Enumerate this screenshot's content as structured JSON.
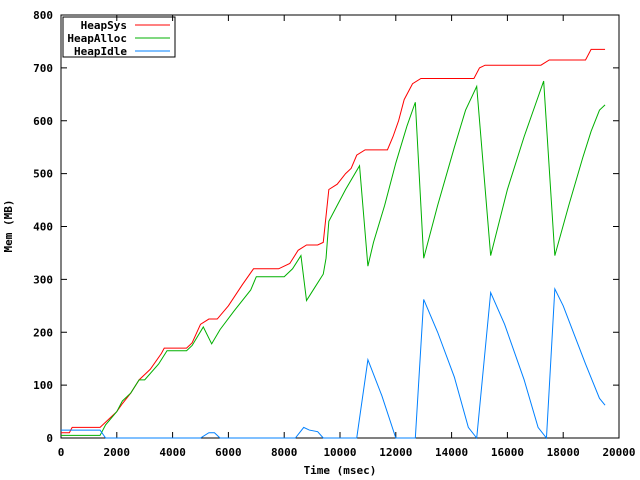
{
  "chart_data": {
    "type": "line",
    "xlabel": "Time (msec)",
    "ylabel": "Mem (MB)",
    "xlim": [
      0,
      20000
    ],
    "ylim": [
      0,
      800
    ],
    "xticks": [
      0,
      2000,
      4000,
      6000,
      8000,
      10000,
      12000,
      14000,
      16000,
      18000,
      20000
    ],
    "yticks": [
      0,
      100,
      200,
      300,
      400,
      500,
      600,
      700,
      800
    ],
    "legend": "top-left",
    "series": [
      {
        "name": "HeapSys",
        "color": "#ff0000",
        "x": [
          0,
          300,
          400,
          1400,
          1600,
          2000,
          2200,
          2500,
          2800,
          3200,
          3600,
          3700,
          4500,
          4700,
          5000,
          5300,
          5600,
          6000,
          6500,
          6900,
          7200,
          7800,
          8200,
          8500,
          8800,
          9200,
          9400,
          9600,
          9900,
          10200,
          10400,
          10600,
          10900,
          11700,
          11900,
          12100,
          12300,
          12600,
          12900,
          14800,
          15000,
          15200,
          17200,
          17500,
          18800,
          19000,
          19500
        ],
        "values": [
          10,
          10,
          20,
          20,
          30,
          50,
          65,
          85,
          110,
          130,
          160,
          170,
          170,
          180,
          215,
          225,
          225,
          250,
          290,
          320,
          320,
          320,
          330,
          355,
          365,
          365,
          370,
          470,
          480,
          500,
          510,
          535,
          545,
          545,
          570,
          600,
          640,
          670,
          680,
          680,
          700,
          705,
          705,
          715,
          715,
          735,
          735
        ]
      },
      {
        "name": "HeapAlloc",
        "color": "#00b000",
        "x": [
          0,
          1400,
          1600,
          2000,
          2200,
          2500,
          2800,
          3000,
          3500,
          3800,
          4500,
          4700,
          5100,
          5400,
          5700,
          6200,
          6800,
          7000,
          8000,
          8300,
          8600,
          8800,
          9100,
          9400,
          9500,
          9600,
          9900,
          10200,
          10700,
          11000,
          11200,
          11600,
          12000,
          12400,
          12700,
          13000,
          13500,
          14100,
          14500,
          14900,
          15400,
          16000,
          16600,
          17000,
          17300,
          17700,
          18200,
          18700,
          19000,
          19300,
          19500
        ],
        "values": [
          5,
          5,
          25,
          50,
          70,
          85,
          110,
          110,
          140,
          165,
          165,
          175,
          210,
          178,
          205,
          240,
          280,
          305,
          305,
          320,
          345,
          260,
          285,
          310,
          340,
          410,
          440,
          470,
          515,
          325,
          370,
          440,
          520,
          590,
          635,
          340,
          440,
          550,
          620,
          665,
          345,
          470,
          570,
          630,
          675,
          345,
          440,
          530,
          580,
          620,
          630
        ]
      },
      {
        "name": "HeapIdle",
        "color": "#0080ff",
        "x": [
          0,
          1400,
          1600,
          5000,
          5300,
          5500,
          5700,
          8400,
          8700,
          8900,
          9200,
          9400,
          10600,
          11000,
          11500,
          12000,
          12700,
          13000,
          13500,
          14100,
          14600,
          14900,
          15400,
          15900,
          16600,
          17100,
          17400,
          17700,
          18000,
          18400,
          18800,
          19300,
          19500
        ],
        "values": [
          15,
          15,
          0,
          0,
          10,
          10,
          0,
          0,
          20,
          15,
          12,
          0,
          0,
          148,
          80,
          0,
          0,
          262,
          200,
          115,
          20,
          0,
          275,
          215,
          110,
          20,
          0,
          282,
          250,
          195,
          140,
          75,
          62
        ]
      }
    ]
  }
}
